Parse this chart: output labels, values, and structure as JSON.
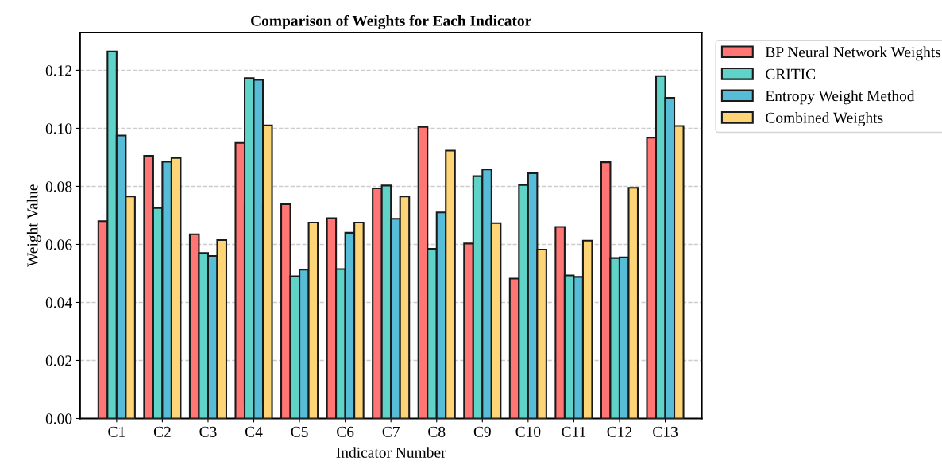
{
  "chart_data": {
    "type": "bar",
    "title": "Comparison of Weights for Each Indicator",
    "xlabel": "Indicator Number",
    "ylabel": "Weight Value",
    "categories": [
      "C1",
      "C2",
      "C3",
      "C4",
      "C5",
      "C6",
      "C7",
      "C8",
      "C9",
      "C10",
      "C11",
      "C12",
      "C13"
    ],
    "series": [
      {
        "name": "BP Neural Network Weights",
        "color": "#ff7675",
        "values": [
          0.068,
          0.0905,
          0.0635,
          0.095,
          0.0738,
          0.069,
          0.0793,
          0.1005,
          0.0603,
          0.0482,
          0.066,
          0.0883,
          0.0968
        ]
      },
      {
        "name": "CRITIC",
        "color": "#5fd3c8",
        "values": [
          0.1265,
          0.0725,
          0.057,
          0.1173,
          0.049,
          0.0515,
          0.0803,
          0.0585,
          0.0835,
          0.0805,
          0.0493,
          0.0553,
          0.118
        ]
      },
      {
        "name": "Entropy Weight Method",
        "color": "#56bcd7",
        "values": [
          0.0975,
          0.0885,
          0.056,
          0.1167,
          0.0513,
          0.064,
          0.0688,
          0.071,
          0.0858,
          0.0845,
          0.0488,
          0.0555,
          0.1105
        ]
      },
      {
        "name": "Combined Weights",
        "color": "#fdd476",
        "values": [
          0.0765,
          0.0898,
          0.0615,
          0.101,
          0.0675,
          0.0675,
          0.0765,
          0.0923,
          0.0673,
          0.0582,
          0.0613,
          0.0795,
          0.1008
        ]
      }
    ],
    "ylim": [
      0,
      0.133
    ],
    "yticks": [
      {
        "value": 0,
        "label": "0.00"
      },
      {
        "value": 0.02,
        "label": "0.02"
      },
      {
        "value": 0.04,
        "label": "0.04"
      },
      {
        "value": 0.06,
        "label": "0.06"
      },
      {
        "value": 0.08,
        "label": "0.08"
      },
      {
        "value": 0.1,
        "label": "0.10"
      },
      {
        "value": 0.12,
        "label": "0.12"
      }
    ],
    "grid": "y",
    "legend": "top right"
  }
}
